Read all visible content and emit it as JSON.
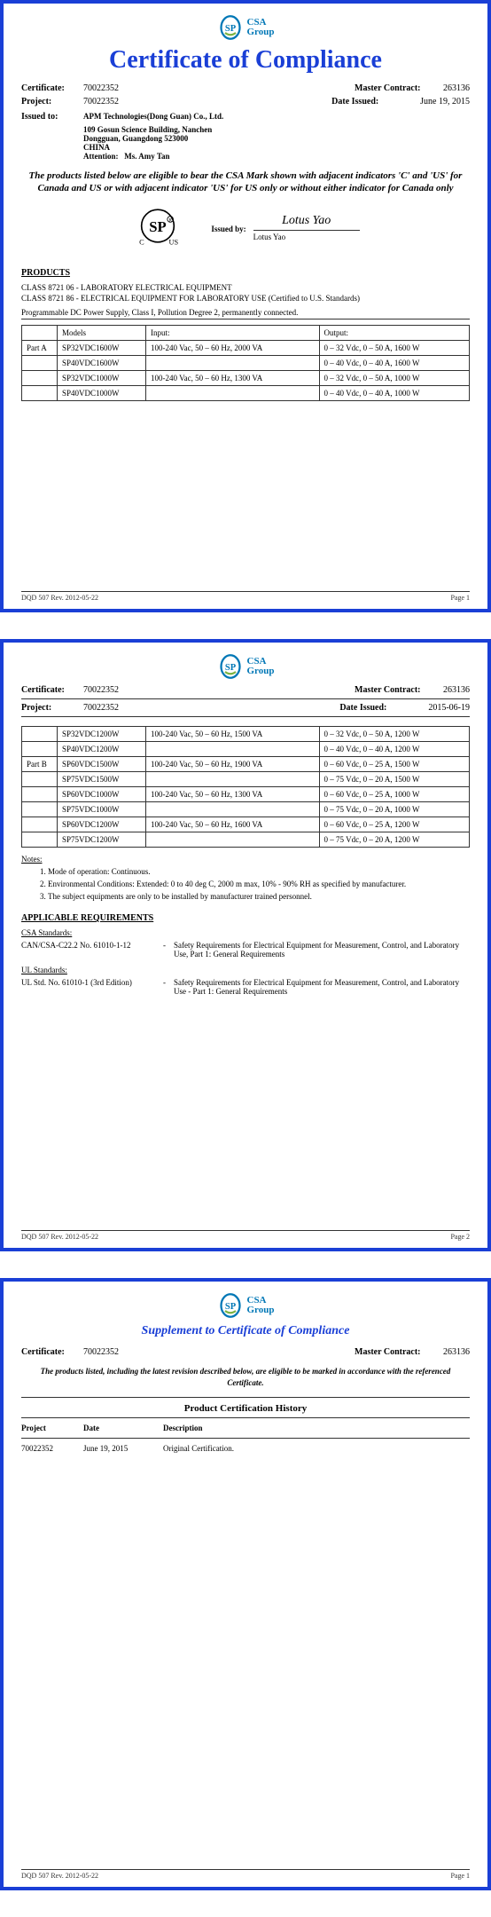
{
  "brand": {
    "name": "CSA",
    "sub": "Group",
    "logo_stroke": "#0077b6",
    "logo_inner": "#7cb342"
  },
  "title": "Certificate of Compliance",
  "supp_title": "Supplement to Certificate of Compliance",
  "meta": {
    "certificate_label": "Certificate:",
    "certificate_value": "70022352",
    "project_label": "Project:",
    "project_value": "70022352",
    "master_label": "Master Contract:",
    "master_value": "263136",
    "date_label": "Date Issued:",
    "date_value": "June 19, 2015",
    "date_value2": "2015-06-19",
    "issued_to_label": "Issued to:"
  },
  "address": {
    "l1": "APM Technologies(Dong Guan) Co., Ltd.",
    "l2": "109 Gosun Science Building, Nanchen",
    "l3": "Dongguan, Guangdong 523000",
    "l4": "CHINA",
    "attn_label": "Attention:",
    "attn_value": "Ms. Amy Tan"
  },
  "eligibility": "The products listed below are eligible to bear the CSA Mark shown with adjacent indicators 'C' and 'US' for Canada and US or with adjacent indicator 'US' for US only or without either indicator for Canada only",
  "issued_by": {
    "label": "Issued by:",
    "script": "Lotus Yao",
    "name": "Lotus Yao"
  },
  "csa_mark": {
    "c": "C",
    "us": "US"
  },
  "sections": {
    "products": "PRODUCTS",
    "applicable": "APPLICABLE REQUIREMENTS",
    "csa_std": "CSA Standards:",
    "ul_std": "UL Standards:"
  },
  "classes": {
    "c1": "CLASS 8721 06 - LABORATORY ELECTRICAL EQUIPMENT",
    "c2": "CLASS 8721 86 - ELECTRICAL EQUIPMENT FOR LABORATORY USE (Certified to U.S. Standards)"
  },
  "product_desc": "Programmable DC Power Supply, Class I, Pollution Degree 2, permanently connected.",
  "table_headers": {
    "part": "",
    "model": "Models",
    "input": "Input:",
    "output": "Output:"
  },
  "page1_rows": [
    {
      "part": "Part A",
      "model": "SP32VDC1600W",
      "input": "100-240 Vac, 50 – 60 Hz, 2000 VA",
      "output": "0 – 32 Vdc, 0 – 50 A, 1600 W"
    },
    {
      "part": "",
      "model": "SP40VDC1600W",
      "input": "",
      "output": "0 – 40 Vdc, 0 – 40 A, 1600 W"
    },
    {
      "part": "",
      "model": "SP32VDC1000W",
      "input": "100-240 Vac, 50 – 60 Hz, 1300 VA",
      "output": "0 – 32 Vdc, 0 – 50 A, 1000 W"
    },
    {
      "part": "",
      "model": "SP40VDC1000W",
      "input": "",
      "output": "0 – 40 Vdc, 0 – 40 A, 1000 W"
    }
  ],
  "page2_rows": [
    {
      "part": "",
      "model": "SP32VDC1200W",
      "input": "100-240 Vac, 50 – 60 Hz, 1500 VA",
      "output": "0 – 32 Vdc, 0 – 50 A, 1200 W"
    },
    {
      "part": "",
      "model": "SP40VDC1200W",
      "input": "",
      "output": "0 – 40 Vdc, 0 – 40 A, 1200 W"
    },
    {
      "part": "Part B",
      "model": "SP60VDC1500W",
      "input": "100-240 Vac, 50 – 60 Hz, 1900 VA",
      "output": "0 – 60 Vdc, 0 – 25 A, 1500 W"
    },
    {
      "part": "",
      "model": "SP75VDC1500W",
      "input": "",
      "output": "0 – 75 Vdc, 0 – 20 A, 1500 W"
    },
    {
      "part": "",
      "model": "SP60VDC1000W",
      "input": "100-240 Vac, 50 – 60 Hz, 1300 VA",
      "output": "0 – 60 Vdc, 0 – 25 A, 1000 W"
    },
    {
      "part": "",
      "model": "SP75VDC1000W",
      "input": "",
      "output": "0 – 75 Vdc, 0 – 20 A, 1000 W"
    },
    {
      "part": "",
      "model": "SP60VDC1200W",
      "input": "100-240 Vac, 50 – 60 Hz, 1600 VA",
      "output": "0 – 60 Vdc, 0 – 25 A, 1200 W"
    },
    {
      "part": "",
      "model": "SP75VDC1200W",
      "input": "",
      "output": "0 – 75 Vdc, 0 – 20 A, 1200 W"
    }
  ],
  "notes": {
    "label": "Notes:",
    "items": [
      "Mode of operation: Continuous.",
      "Environmental Conditions: Extended: 0 to 40 deg C, 2000 m max, 10% - 90% RH as specified by manufacturer.",
      "The subject equipments are only to be installed by manufacturer trained personnel."
    ]
  },
  "standards": {
    "csa_ref": "CAN/CSA-C22.2 No. 61010-1-12",
    "csa_desc": "Safety Requirements for Electrical Equipment for Measurement, Control, and Laboratory Use, Part 1: General Requirements",
    "ul_ref": "UL Std. No. 61010-1 (3rd Edition)",
    "ul_desc": "Safety Requirements for Electrical Equipment for Measurement, Control, and Laboratory Use - Part 1: General Requirements"
  },
  "supp_note": "The products listed, including the latest revision described below, are eligible to be marked in accordance with the referenced Certificate.",
  "history": {
    "title": "Product Certification History",
    "h1": "Project",
    "h2": "Date",
    "h3": "Description",
    "rows": [
      {
        "c1": "70022352",
        "c2": "June 19, 2015",
        "c3": "Original Certification."
      }
    ]
  },
  "footer": {
    "left": "DQD 507 Rev. 2012-05-22",
    "p1": "Page 1",
    "p2": "Page 2"
  }
}
